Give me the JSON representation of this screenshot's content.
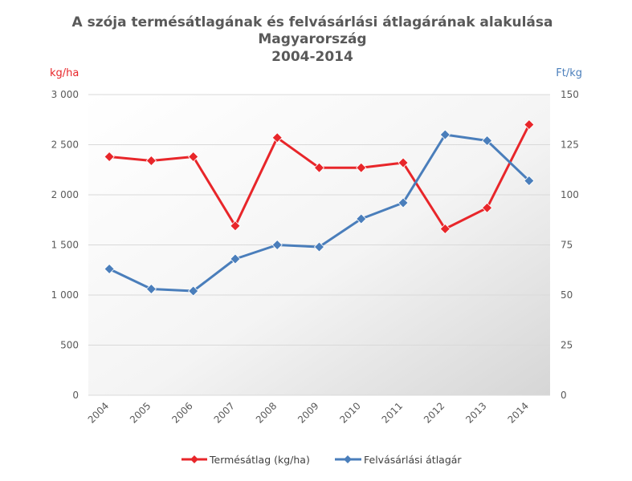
{
  "colors": {
    "yield": "#e8262a",
    "price": "#4a7ebb",
    "text": "#595959",
    "grid": "#d9d9d9"
  },
  "chart_data": {
    "type": "line",
    "title_lines": [
      "A szója termésátlagának és felvásárlási átlagárának alakulása",
      "Magyarország",
      "2004-2014"
    ],
    "y_left_unit": "kg/ha",
    "y_right_unit": "Ft/kg",
    "y_left_ticks": [
      "0",
      "500",
      "1 000",
      "1 500",
      "2 000",
      "2 500",
      "3 000"
    ],
    "y_right_ticks": [
      "0",
      "25",
      "50",
      "75",
      "100",
      "125",
      "150"
    ],
    "ylim_left": [
      0,
      3000
    ],
    "ylim_right": [
      0,
      150
    ],
    "categories": [
      "2004",
      "2005",
      "2006",
      "2007",
      "2008",
      "2009",
      "2010",
      "2011",
      "2012",
      "2013",
      "2014"
    ],
    "grid": true,
    "legend_position": "bottom",
    "series": [
      {
        "name": "Termésátlag (kg/ha)",
        "axis": "left",
        "marker": "diamond",
        "values": [
          2380,
          2340,
          2380,
          1690,
          2570,
          2270,
          2270,
          2320,
          1660,
          1870,
          2700
        ]
      },
      {
        "name": "Felvásárlási átlagár",
        "axis": "right",
        "marker": "diamond",
        "values": [
          63,
          53,
          52,
          68,
          75,
          74,
          88,
          96,
          130,
          127,
          107
        ]
      }
    ]
  }
}
